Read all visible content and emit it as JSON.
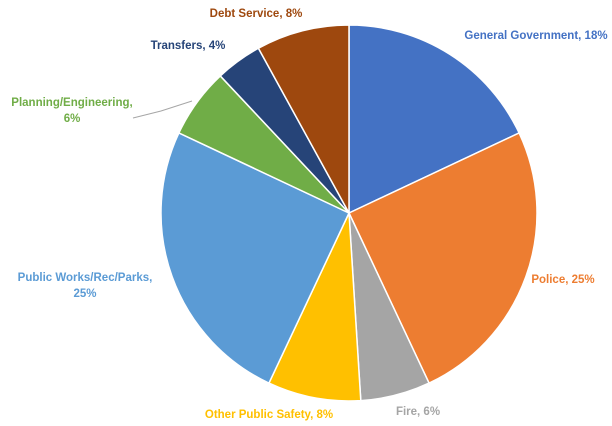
{
  "chart_data": {
    "type": "pie",
    "title": "",
    "show_legend": false,
    "slices": [
      {
        "label": "General Government",
        "value": 18,
        "label_text": "General Government, 18%",
        "color": "#4472C4"
      },
      {
        "label": "Police",
        "value": 25,
        "label_text": "Police, 25%",
        "color": "#ED7D31"
      },
      {
        "label": "Fire",
        "value": 6,
        "label_text": "Fire, 6%",
        "color": "#A5A5A5"
      },
      {
        "label": "Other Public Safety",
        "value": 8,
        "label_text": "Other Public Safety, 8%",
        "color": "#FFC000"
      },
      {
        "label": "Public Works/Rec/Parks",
        "value": 25,
        "label_lines": [
          "Public Works/Rec/Parks,",
          "25%"
        ],
        "color": "#5B9BD5"
      },
      {
        "label": "Planning/Engineering",
        "value": 6,
        "label_lines": [
          "Planning/Engineering,",
          "6%"
        ],
        "color": "#70AD47"
      },
      {
        "label": "Transfers",
        "value": 4,
        "label_text": "Transfers, 4%",
        "color": "#264478"
      },
      {
        "label": "Debt Service",
        "value": 8,
        "label_text": "Debt Service, 8%",
        "color": "#9E480E"
      }
    ]
  }
}
